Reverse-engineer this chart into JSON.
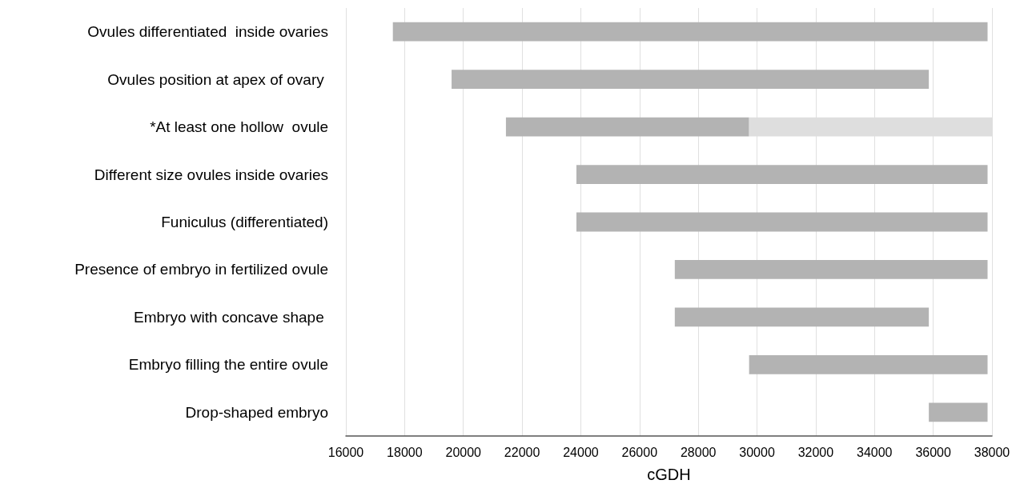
{
  "chart_data": {
    "type": "bar",
    "orientation": "horizontal",
    "categories": [
      "Ovules differentiated  inside ovaries",
      "Ovules position at apex of ovary ",
      "*At least one hollow  ovule",
      "Different size ovules inside ovaries",
      "Funiculus (differentiated)",
      "Presence of embryo in fertilized ovule",
      "Embryo with concave shape ",
      "Embryo filling the entire ovule",
      "Drop-shaped embryo"
    ],
    "series": [
      {
        "color": "#b3b3b3",
        "base": [
          17600,
          19600,
          21450,
          23850,
          23850,
          27200,
          27200,
          29730,
          35850
        ],
        "values": [
          20250,
          16250,
          8280,
          14000,
          14000,
          10650,
          8650,
          8120,
          2000
        ]
      },
      {
        "color": "#dedede",
        "base": [
          null,
          null,
          29730,
          null,
          null,
          null,
          null,
          null,
          null
        ],
        "values": [
          null,
          null,
          8270,
          null,
          null,
          null,
          null,
          null,
          null
        ]
      }
    ],
    "xlabel": "cGDH",
    "xlim": [
      16000,
      38000
    ],
    "xticks": [
      16000,
      18000,
      20000,
      22000,
      24000,
      26000,
      28000,
      30000,
      32000,
      34000,
      36000,
      38000
    ],
    "grid": "x"
  }
}
